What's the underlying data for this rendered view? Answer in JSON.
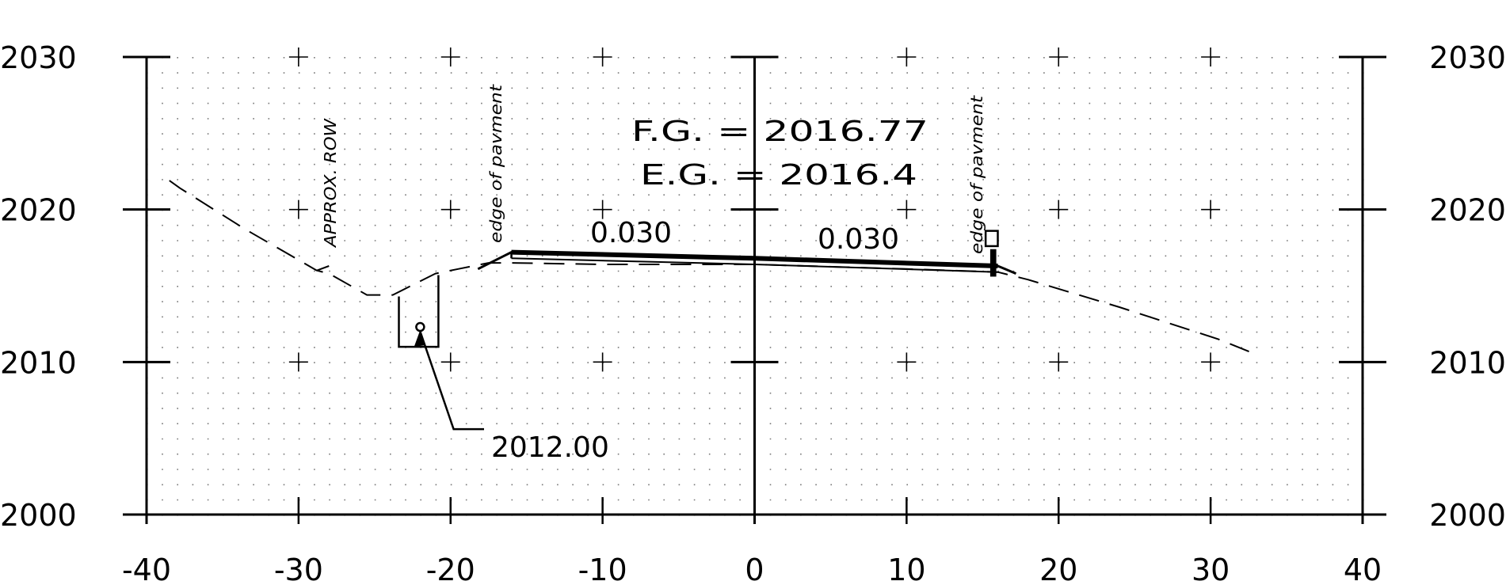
{
  "chart_data": {
    "type": "line",
    "title": "",
    "xlabel": "",
    "ylabel": "",
    "xlim": [
      -40,
      40
    ],
    "ylim": [
      2000,
      2030
    ],
    "x_ticks": [
      "-40",
      "-30",
      "-20",
      "-10",
      "0",
      "10",
      "20",
      "30",
      "40"
    ],
    "y_ticks": [
      "2000",
      "2010",
      "2020",
      "2030"
    ],
    "grid": "dotted",
    "series": [
      {
        "name": "",
        "style": "dashed",
        "points": [
          [
            -38.5,
            2021.9
          ],
          [
            -37.8,
            2021.4
          ],
          [
            -33.5,
            2018.7
          ],
          [
            -28.8,
            2016.0
          ],
          [
            -28.0,
            2015.8
          ],
          [
            -25.5,
            2014.4
          ],
          [
            -23.8,
            2014.4
          ],
          [
            -21.0,
            2015.8
          ],
          [
            -19.5,
            2016.1
          ],
          [
            -17.5,
            2016.5
          ],
          [
            -16.0,
            2016.5
          ],
          [
            -10.0,
            2016.4
          ],
          [
            0.0,
            2016.4
          ],
          [
            10.0,
            2016.1
          ],
          [
            16.0,
            2015.9
          ],
          [
            18.0,
            2015.4
          ],
          [
            24.0,
            2013.6
          ],
          [
            30.5,
            2011.5
          ],
          [
            33.0,
            2010.5
          ]
        ]
      },
      {
        "name": "",
        "style": "solid",
        "points": [
          [
            -18.2,
            2016.1
          ],
          [
            -16.0,
            2017.2
          ],
          [
            0.0,
            2016.8
          ],
          [
            16.0,
            2016.3
          ],
          [
            17.2,
            2015.8
          ]
        ]
      }
    ],
    "annotations": {
      "fg": "F.G. = 2016.77",
      "eg": "E.G. = 2016.4",
      "slope_left": "0.030",
      "slope_right": "0.030",
      "row_label": "APPROX. ROW",
      "edge_left": "edge of pavment",
      "edge_right": "edge of pavment",
      "pipe_elev": "2012.00"
    },
    "colors": {
      "ink": "#000000",
      "background": "#ffffff"
    }
  }
}
